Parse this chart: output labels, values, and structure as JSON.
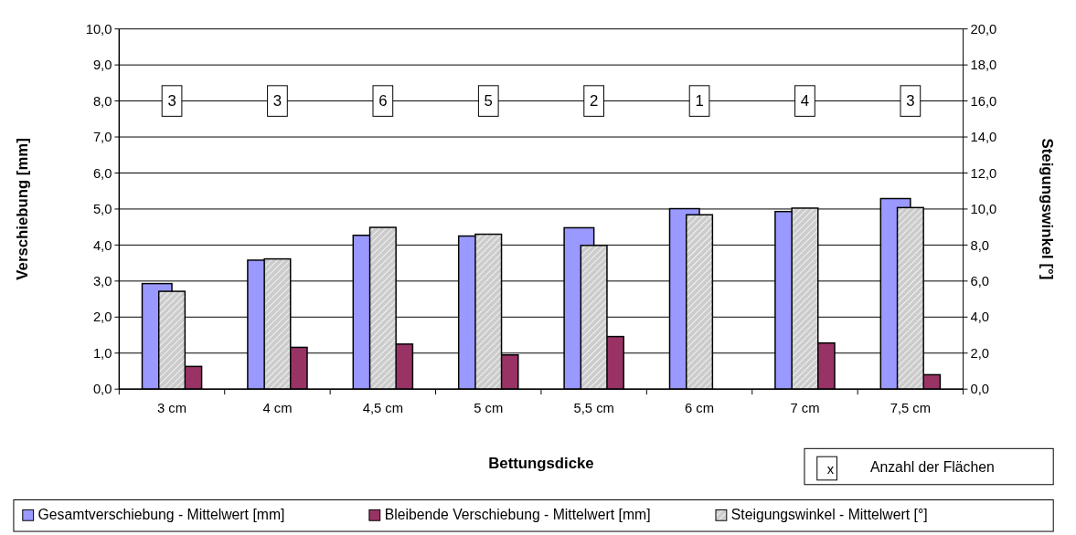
{
  "chart_data": {
    "type": "bar",
    "xlabel": "Bettungsdicke",
    "ylabel": "Verschiebung [mm]",
    "y2label": "Steigungswinkel [°]",
    "categories": [
      "3 cm",
      "4 cm",
      "4,5 cm",
      "5 cm",
      "5,5 cm",
      "6 cm",
      "7 cm",
      "7,5 cm"
    ],
    "series": [
      {
        "name": "Gesamtverschiebung - Mittelwert [mm]",
        "color": "#9999ff",
        "values": [
          2.93,
          3.58,
          4.27,
          4.25,
          4.48,
          5.01,
          4.93,
          5.29
        ]
      },
      {
        "name": "Bleibende Verschiebung - Mittelwert [mm]",
        "color": "#993366",
        "values": [
          0.63,
          1.16,
          1.25,
          0.95,
          1.46,
          null,
          1.28,
          0.4
        ]
      },
      {
        "name": "Steigungswinkel - Mittelwert [°]",
        "color": "#cccccc",
        "axis": "y2",
        "values": [
          5.43,
          7.23,
          8.98,
          8.6,
          7.98,
          9.68,
          10.05,
          10.08
        ]
      }
    ],
    "ylim": [
      0,
      10
    ],
    "yticks": [
      {
        "value": 0,
        "label": "0,0"
      },
      {
        "value": 1,
        "label": "1,0"
      },
      {
        "value": 2,
        "label": "2,0"
      },
      {
        "value": 3,
        "label": "3,0"
      },
      {
        "value": 4,
        "label": "4,0"
      },
      {
        "value": 5,
        "label": "5,0"
      },
      {
        "value": 6,
        "label": "6,0"
      },
      {
        "value": 7,
        "label": "7,0"
      },
      {
        "value": 8,
        "label": "8,0"
      },
      {
        "value": 9,
        "label": "9,0"
      },
      {
        "value": 10,
        "label": "10,0"
      }
    ],
    "y2lim": [
      0,
      20
    ],
    "y2ticks": [
      {
        "value": 0,
        "label": "0,0"
      },
      {
        "value": 2,
        "label": "2,0"
      },
      {
        "value": 4,
        "label": "4,0"
      },
      {
        "value": 6,
        "label": "6,0"
      },
      {
        "value": 8,
        "label": "8,0"
      },
      {
        "value": 10,
        "label": "10,0"
      },
      {
        "value": 12,
        "label": "12,0"
      },
      {
        "value": 14,
        "label": "14,0"
      },
      {
        "value": 16,
        "label": "16,0"
      },
      {
        "value": 18,
        "label": "18,0"
      },
      {
        "value": 20,
        "label": "20,0"
      }
    ],
    "grid": "y",
    "legend": "bottom",
    "annotations": [
      {
        "text": "3",
        "y": 8
      },
      {
        "text": "3",
        "y": 8
      },
      {
        "text": "6",
        "y": 8
      },
      {
        "text": "5",
        "y": 8
      },
      {
        "text": "2",
        "y": 8
      },
      {
        "text": "1",
        "y": 8
      },
      {
        "text": "4",
        "y": 8
      },
      {
        "text": "3",
        "y": 8
      },
      "x",
      "Anzahl der Flächen"
    ]
  }
}
